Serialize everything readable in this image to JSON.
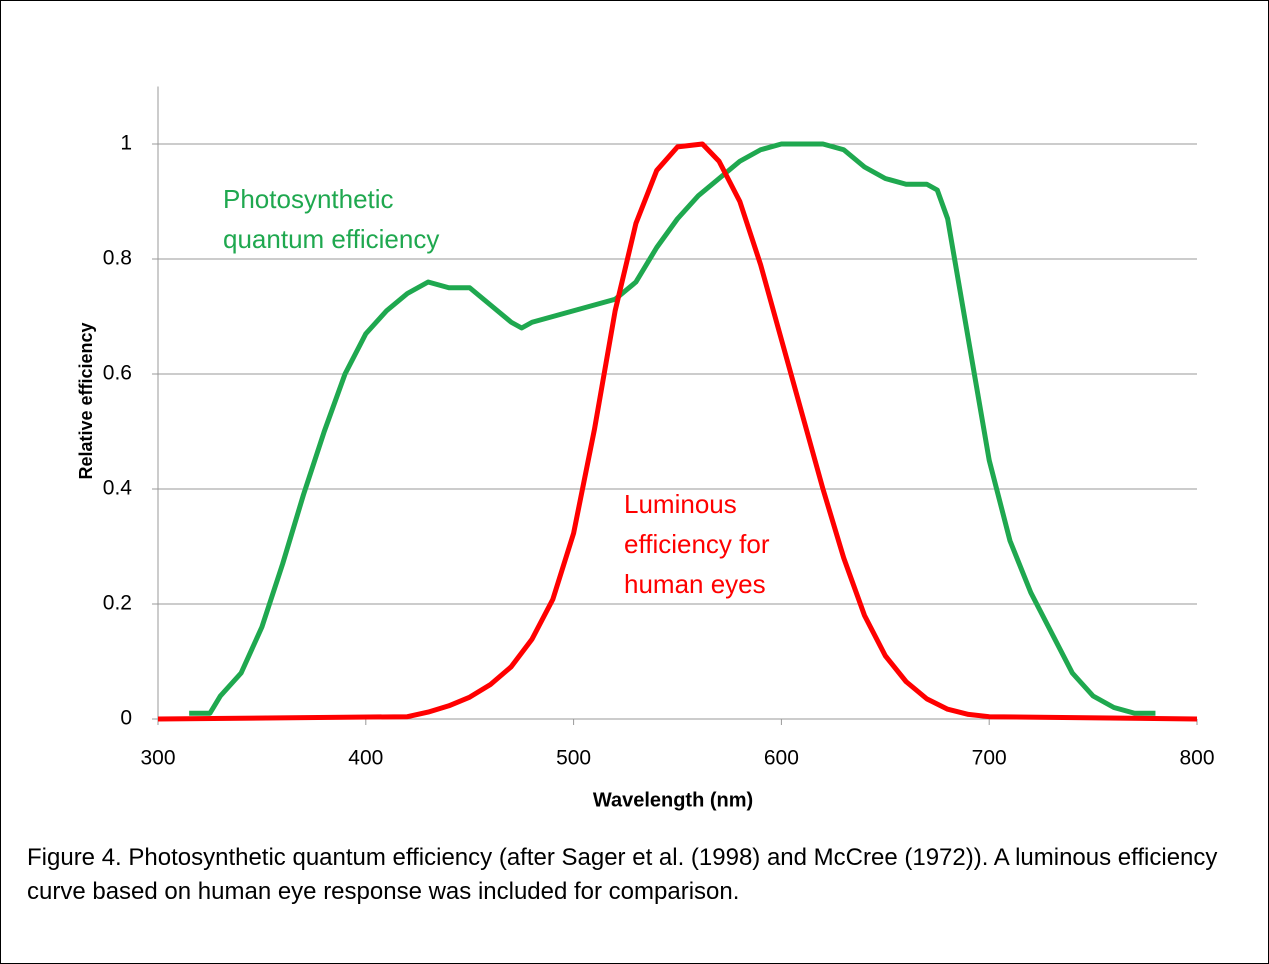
{
  "chart_data": {
    "type": "line",
    "xlabel": "Wavelength (nm)",
    "ylabel": "Relative efficiency",
    "xlim": [
      300,
      800
    ],
    "xticks": [
      300,
      400,
      500,
      600,
      700,
      800
    ],
    "ylim": [
      0,
      1.1
    ],
    "yticks": [
      0,
      0.2,
      0.4,
      0.6,
      0.8,
      1
    ],
    "grid": true,
    "annotations": [
      {
        "lines": [
          "Photosynthetic",
          "quantum efficiency"
        ],
        "color": "#1fa84f"
      },
      {
        "lines": [
          "Luminous",
          "efficiency for",
          "human eyes"
        ],
        "color": "#ff0000"
      }
    ],
    "series": [
      {
        "name": "Photosynthetic quantum efficiency",
        "color": "#1fa84f",
        "x": [
          315,
          325,
          330,
          340,
          350,
          360,
          370,
          380,
          390,
          400,
          410,
          420,
          430,
          440,
          450,
          460,
          470,
          475,
          480,
          490,
          500,
          510,
          520,
          530,
          540,
          550,
          560,
          570,
          580,
          590,
          600,
          610,
          620,
          630,
          640,
          650,
          660,
          670,
          675,
          680,
          690,
          700,
          710,
          720,
          730,
          740,
          750,
          760,
          770,
          780
        ],
        "values": [
          0.01,
          0.01,
          0.04,
          0.08,
          0.16,
          0.27,
          0.39,
          0.5,
          0.6,
          0.67,
          0.71,
          0.74,
          0.76,
          0.75,
          0.75,
          0.72,
          0.69,
          0.68,
          0.69,
          0.7,
          0.71,
          0.72,
          0.73,
          0.76,
          0.82,
          0.87,
          0.91,
          0.94,
          0.97,
          0.99,
          1.0,
          1.0,
          1.0,
          0.99,
          0.96,
          0.94,
          0.93,
          0.93,
          0.92,
          0.87,
          0.66,
          0.45,
          0.31,
          0.22,
          0.15,
          0.08,
          0.04,
          0.02,
          0.01,
          0.01
        ]
      },
      {
        "name": "Luminous efficiency for human eyes",
        "color": "#ff0000",
        "x": [
          300,
          420,
          430,
          440,
          450,
          460,
          470,
          480,
          490,
          500,
          510,
          520,
          530,
          540,
          550,
          562,
          570,
          580,
          590,
          600,
          610,
          620,
          630,
          640,
          650,
          660,
          670,
          680,
          690,
          700,
          800
        ],
        "values": [
          0,
          0.004,
          0.012,
          0.023,
          0.038,
          0.06,
          0.091,
          0.139,
          0.208,
          0.323,
          0.503,
          0.71,
          0.862,
          0.954,
          0.995,
          1.0,
          0.97,
          0.9,
          0.79,
          0.66,
          0.53,
          0.4,
          0.28,
          0.18,
          0.11,
          0.065,
          0.035,
          0.017,
          0.008,
          0.004,
          0
        ]
      }
    ],
    "caption": "Figure 4. Photosynthetic quantum efficiency (after Sager et al. (1998) and McCree (1972)). A luminous efficiency curve based on human eye response was included for comparison."
  }
}
